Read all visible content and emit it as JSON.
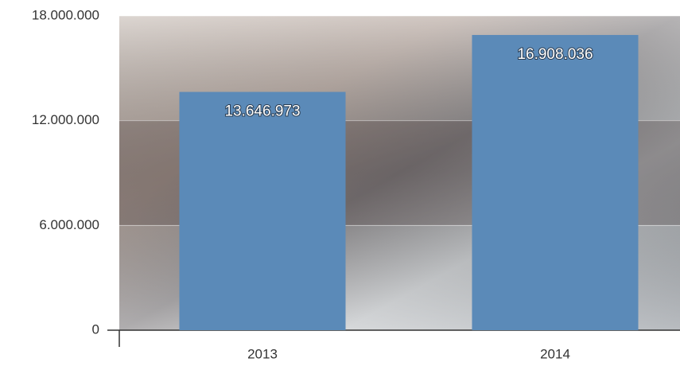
{
  "chart_data": {
    "type": "bar",
    "categories": [
      "2013",
      "2014"
    ],
    "values": [
      13646973,
      16908036
    ],
    "value_labels": [
      "13.646.973",
      "16.908.036"
    ],
    "color": "#5b8ab8",
    "ylim": [
      0,
      18000000
    ],
    "yticks": [
      0,
      {
        "value": 6000000,
        "label": "6.000.000"
      },
      {
        "value": 12000000,
        "label": "12.000.000"
      },
      {
        "value": 18000000,
        "label": "18.000.000"
      }
    ],
    "grid": true
  }
}
